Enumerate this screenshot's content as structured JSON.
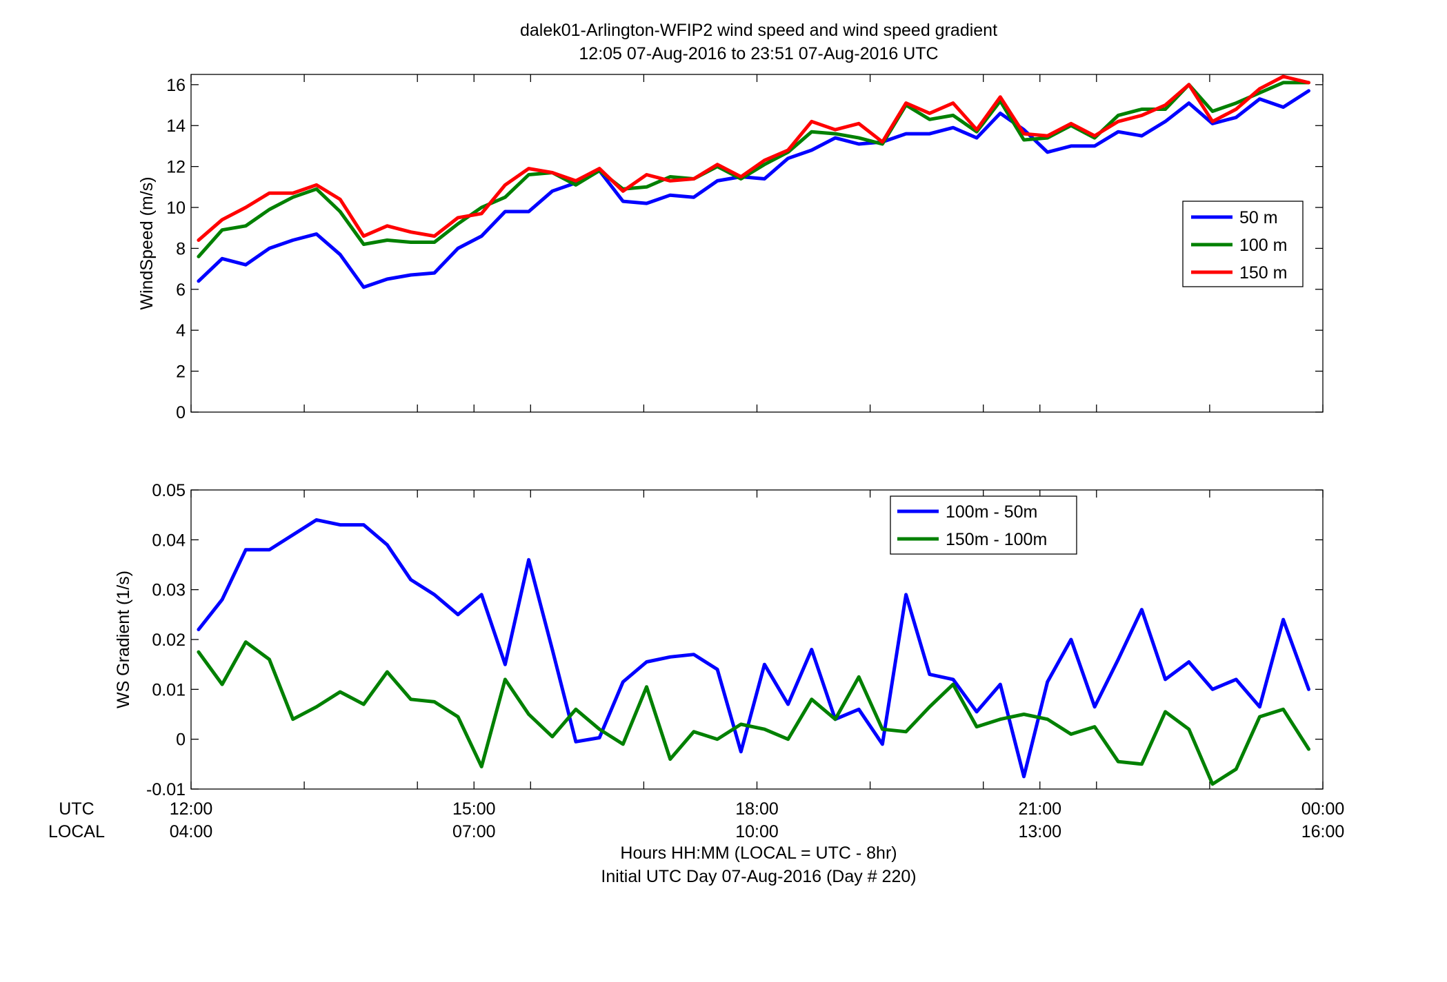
{
  "figure": {
    "title_line1": "dalek01-Arlington-WFIP2  wind speed and wind speed gradient",
    "title_line2": "12:05 07-Aug-2016 to 23:51 07-Aug-2016  UTC",
    "xlabel_line1": "Hours HH:MM  (LOCAL = UTC - 8hr)",
    "xlabel_line2": "Initial UTC Day 07-Aug-2016 (Day # 220)",
    "row_label_utc": "UTC",
    "row_label_local": "LOCAL"
  },
  "chart_data": [
    {
      "type": "line",
      "title": "",
      "xlabel": "",
      "ylabel": "WindSpeed (m/s)",
      "xlim": [
        12,
        24
      ],
      "ylim": [
        0,
        16.5
      ],
      "yticks": [
        0,
        2,
        4,
        6,
        8,
        10,
        12,
        14,
        16
      ],
      "ytick_labels": [
        "0",
        "2",
        "4",
        "6",
        "8",
        "10",
        "12",
        "14",
        "16"
      ],
      "xticks": [
        12,
        13.2,
        14.4,
        15,
        15.6,
        16.8,
        18,
        19.2,
        20.4,
        21,
        21.6,
        22.8,
        24
      ],
      "xtick_labels": [],
      "grid": false,
      "legend_position": "right",
      "x": [
        12.08,
        12.33,
        12.58,
        12.83,
        13.08,
        13.33,
        13.58,
        13.83,
        14.08,
        14.33,
        14.58,
        14.83,
        15.08,
        15.33,
        15.58,
        15.83,
        16.08,
        16.33,
        16.58,
        16.83,
        17.08,
        17.33,
        17.58,
        17.83,
        18.08,
        18.33,
        18.58,
        18.83,
        19.08,
        19.33,
        19.58,
        19.83,
        20.08,
        20.33,
        20.58,
        20.83,
        21.08,
        21.33,
        21.58,
        21.83,
        22.08,
        22.33,
        22.58,
        22.83,
        23.08,
        23.33,
        23.58,
        23.85
      ],
      "series": [
        {
          "name": "50 m",
          "color": "#0000ff",
          "values": [
            6.4,
            7.5,
            7.2,
            8.0,
            8.4,
            8.7,
            7.7,
            6.1,
            6.5,
            6.7,
            6.8,
            8.0,
            8.6,
            9.8,
            9.8,
            10.8,
            11.2,
            11.8,
            10.3,
            10.2,
            10.6,
            10.5,
            11.3,
            11.5,
            11.4,
            12.4,
            12.8,
            13.4,
            13.1,
            13.2,
            13.6,
            13.6,
            13.9,
            13.4,
            14.6,
            13.8,
            12.7,
            13.0,
            13.0,
            13.7,
            13.5,
            14.2,
            15.1,
            14.1,
            14.4,
            15.3,
            14.9,
            15.7
          ]
        },
        {
          "name": "100 m",
          "color": "#008000",
          "values": [
            7.6,
            8.9,
            9.1,
            9.9,
            10.5,
            10.9,
            9.8,
            8.2,
            8.4,
            8.3,
            8.3,
            9.2,
            10.0,
            10.5,
            11.6,
            11.7,
            11.1,
            11.8,
            10.9,
            11.0,
            11.5,
            11.4,
            12.0,
            11.4,
            12.1,
            12.7,
            13.7,
            13.6,
            13.4,
            13.1,
            15.0,
            14.3,
            14.5,
            13.7,
            15.2,
            13.3,
            13.4,
            14.0,
            13.4,
            14.5,
            14.8,
            14.8,
            16.0,
            14.7,
            15.1,
            15.6,
            16.1,
            16.1
          ]
        },
        {
          "name": "150 m",
          "color": "#ff0000",
          "values": [
            8.4,
            9.4,
            10.0,
            10.7,
            10.7,
            11.1,
            10.4,
            8.6,
            9.1,
            8.8,
            8.6,
            9.5,
            9.7,
            11.1,
            11.9,
            11.7,
            11.3,
            11.9,
            10.8,
            11.6,
            11.3,
            11.4,
            12.1,
            11.5,
            12.3,
            12.8,
            14.2,
            13.8,
            14.1,
            13.2,
            15.1,
            14.6,
            15.1,
            13.8,
            15.4,
            13.6,
            13.5,
            14.1,
            13.5,
            14.2,
            14.5,
            15.0,
            16.0,
            14.2,
            14.8,
            15.8,
            16.4,
            16.1
          ]
        }
      ]
    },
    {
      "type": "line",
      "title": "",
      "xlabel": "",
      "ylabel": "WS Gradient (1/s)",
      "xlim": [
        12,
        24
      ],
      "ylim": [
        -0.01,
        0.05
      ],
      "yticks": [
        -0.01,
        0,
        0.01,
        0.02,
        0.03,
        0.04,
        0.05
      ],
      "ytick_labels": [
        "-0.01",
        "0",
        "0.01",
        "0.02",
        "0.03",
        "0.04",
        "0.05"
      ],
      "xticks": [
        12,
        13.2,
        14.4,
        15,
        15.6,
        16.8,
        18,
        19.2,
        20.4,
        21,
        21.6,
        22.8,
        24
      ],
      "xtick_labels": [
        {
          "x": 12,
          "utc": "12:00",
          "local": "04:00"
        },
        {
          "x": 15,
          "utc": "15:00",
          "local": "07:00"
        },
        {
          "x": 18,
          "utc": "18:00",
          "local": "10:00"
        },
        {
          "x": 21,
          "utc": "21:00",
          "local": "13:00"
        },
        {
          "x": 24,
          "utc": "00:00",
          "local": "16:00"
        }
      ],
      "grid": false,
      "legend_position": "top-right",
      "x": [
        12.08,
        12.33,
        12.58,
        12.83,
        13.08,
        13.33,
        13.58,
        13.83,
        14.08,
        14.33,
        14.58,
        14.83,
        15.08,
        15.33,
        15.58,
        15.83,
        16.08,
        16.33,
        16.58,
        16.83,
        17.08,
        17.33,
        17.58,
        17.83,
        18.08,
        18.33,
        18.58,
        18.83,
        19.08,
        19.33,
        19.58,
        19.83,
        20.08,
        20.33,
        20.58,
        20.83,
        21.08,
        21.33,
        21.58,
        21.83,
        22.08,
        22.33,
        22.58,
        22.83,
        23.08,
        23.33,
        23.58,
        23.85
      ],
      "series": [
        {
          "name": "100m - 50m",
          "color": "#0000ff",
          "values": [
            0.022,
            0.028,
            0.038,
            0.038,
            0.041,
            0.044,
            0.043,
            0.043,
            0.039,
            0.032,
            0.029,
            0.025,
            0.029,
            0.015,
            0.036,
            0.018,
            -0.0005,
            0.0003,
            0.0115,
            0.0155,
            0.0165,
            0.017,
            0.014,
            -0.0025,
            0.015,
            0.007,
            0.018,
            0.004,
            0.006,
            -0.001,
            0.029,
            0.013,
            0.012,
            0.0055,
            0.011,
            -0.0075,
            0.0115,
            0.02,
            0.0065,
            0.016,
            0.026,
            0.012,
            0.0155,
            0.01,
            0.012,
            0.0065,
            0.024,
            0.01
          ]
        },
        {
          "name": "150m - 100m",
          "color": "#008000",
          "values": [
            0.0175,
            0.011,
            0.0195,
            0.016,
            0.004,
            0.0065,
            0.0095,
            0.007,
            0.0135,
            0.008,
            0.0075,
            0.0045,
            -0.0055,
            0.012,
            0.005,
            0.0005,
            0.006,
            0.002,
            -0.001,
            0.0105,
            -0.004,
            0.0015,
            0.0,
            0.003,
            0.002,
            0.0,
            0.008,
            0.004,
            0.0125,
            0.002,
            0.0015,
            0.0065,
            0.011,
            0.0025,
            0.004,
            0.005,
            0.004,
            0.001,
            0.0025,
            -0.0045,
            -0.005,
            0.0055,
            0.002,
            -0.009,
            -0.006,
            0.0045,
            0.006,
            -0.002
          ]
        }
      ]
    }
  ]
}
